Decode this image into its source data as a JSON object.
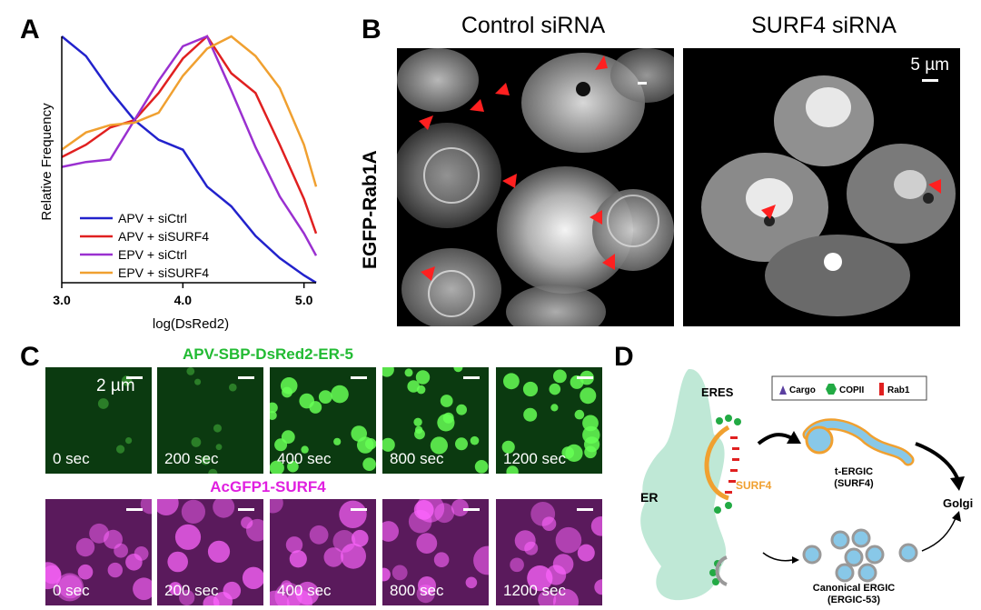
{
  "panels": {
    "a": "A",
    "b": "B",
    "c": "C",
    "d": "D"
  },
  "chart_data": {
    "type": "line",
    "xlabel": "log(DsRed2)",
    "ylabel": "Relative Frequency",
    "xlim": [
      3.0,
      5.1
    ],
    "ylim": [
      0,
      1
    ],
    "xticks": [
      "3.0",
      "4.0",
      "5.0"
    ],
    "series": [
      {
        "name": "APV + siCtrl",
        "color": "#2222cc",
        "x": [
          3.0,
          3.2,
          3.4,
          3.6,
          3.8,
          4.0,
          4.2,
          4.4,
          4.6,
          4.8,
          5.0,
          5.1
        ],
        "y": [
          1.0,
          0.92,
          0.78,
          0.66,
          0.58,
          0.54,
          0.39,
          0.31,
          0.19,
          0.1,
          0.03,
          0.0
        ]
      },
      {
        "name": "APV + siSURF4",
        "color": "#e02020",
        "x": [
          3.0,
          3.2,
          3.4,
          3.6,
          3.8,
          4.0,
          4.2,
          4.4,
          4.6,
          4.8,
          5.0,
          5.1
        ],
        "y": [
          0.51,
          0.56,
          0.63,
          0.66,
          0.77,
          0.91,
          1.0,
          0.85,
          0.77,
          0.56,
          0.34,
          0.2
        ]
      },
      {
        "name": "EPV + siCtrl",
        "color": "#9a30d0",
        "x": [
          3.0,
          3.2,
          3.4,
          3.6,
          3.8,
          4.0,
          4.2,
          4.4,
          4.6,
          4.8,
          5.0,
          5.1
        ],
        "y": [
          0.47,
          0.49,
          0.5,
          0.66,
          0.82,
          0.96,
          1.0,
          0.78,
          0.55,
          0.35,
          0.2,
          0.11
        ]
      },
      {
        "name": "EPV + siSURF4",
        "color": "#f0a030",
        "x": [
          3.0,
          3.2,
          3.4,
          3.6,
          3.8,
          4.0,
          4.2,
          4.4,
          4.6,
          4.8,
          5.0,
          5.1
        ],
        "y": [
          0.54,
          0.61,
          0.64,
          0.65,
          0.69,
          0.84,
          0.95,
          1.0,
          0.92,
          0.79,
          0.56,
          0.39
        ]
      }
    ]
  },
  "panel_b": {
    "row_label": "EGFP-Rab1A",
    "col_control": "Control siRNA",
    "col_surf4": "SURF4 siRNA",
    "scale": "5 µm"
  },
  "panel_c": {
    "row1_title": "APV-SBP-DsRed2-ER-5",
    "row2_title": "AcGFP1-SURF4",
    "scale": "2 µm",
    "row1_color": "#22bb33",
    "row2_color": "#e020e0",
    "times": [
      "0 sec",
      "200 sec",
      "400 sec",
      "800 sec",
      "1200 sec"
    ]
  },
  "panel_d": {
    "legend": {
      "cargo": "Cargo",
      "copii": "COPII",
      "rab1": "Rab1"
    },
    "eres": "ERES",
    "er": "ER",
    "surf4": "SURF4",
    "t_ergic": "t-ERGIC",
    "t_ergic_sub": "(SURF4)",
    "golgi": "Golgi",
    "canonical": "Canonical ERGIC",
    "canonical_sub": "(ERGIC-53)"
  }
}
